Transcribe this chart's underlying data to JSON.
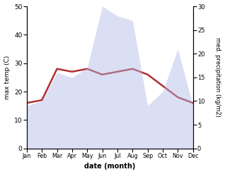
{
  "months": [
    "Jan",
    "Feb",
    "Mar",
    "Apr",
    "May",
    "Jun",
    "Jul",
    "Aug",
    "Sep",
    "Oct",
    "Nov",
    "Dec"
  ],
  "temperature": [
    16,
    17,
    28,
    27,
    28,
    26,
    27,
    28,
    26,
    22,
    18,
    16
  ],
  "precipitation": [
    9,
    10,
    16,
    15,
    17,
    30,
    28,
    27,
    9,
    12,
    21,
    9
  ],
  "temp_color": "#b03030",
  "precip_fill_color": "#b0b8e8",
  "temp_ylim": [
    0,
    50
  ],
  "precip_ylim": [
    0,
    30
  ],
  "temp_yticks": [
    0,
    10,
    20,
    30,
    40,
    50
  ],
  "precip_yticks": [
    0,
    5,
    10,
    15,
    20,
    25,
    30
  ],
  "ylabel_left": "max temp (C)",
  "ylabel_right": "med. precipitation (kg/m2)",
  "xlabel": "date (month)",
  "bg_color": "#ffffff",
  "line_width": 1.8,
  "fill_alpha": 0.45
}
